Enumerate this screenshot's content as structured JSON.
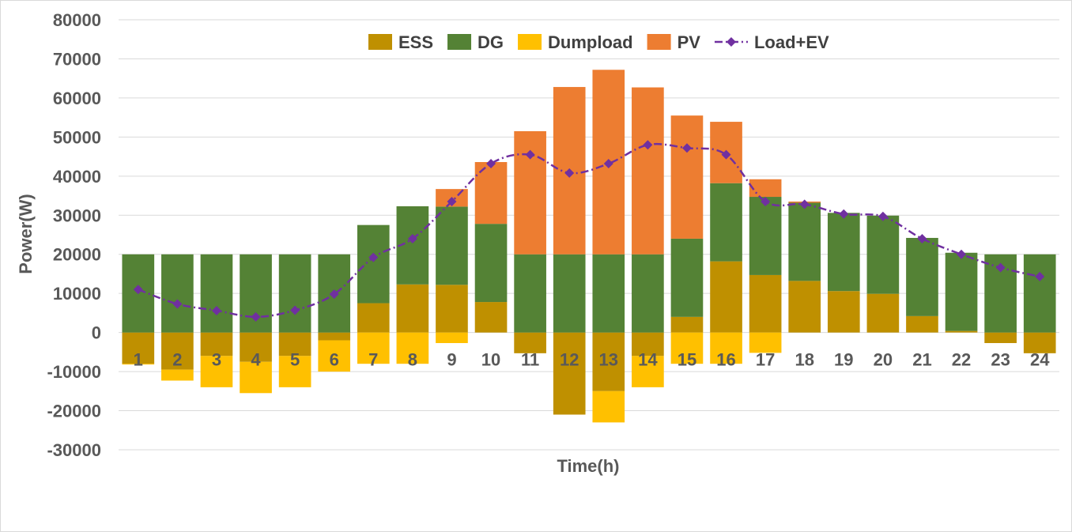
{
  "chart_data": {
    "type": "bar",
    "stacked": true,
    "title": "",
    "xlabel": "Time(h)",
    "ylabel": "Power(W)",
    "ylim": [
      -30000,
      80000
    ],
    "ytick_step": 10000,
    "grid": true,
    "legend_placement": "top-center",
    "categories": [
      "1",
      "2",
      "3",
      "4",
      "5",
      "6",
      "7",
      "8",
      "9",
      "10",
      "11",
      "12",
      "13",
      "14",
      "15",
      "16",
      "17",
      "18",
      "19",
      "20",
      "21",
      "22",
      "23",
      "24"
    ],
    "series": [
      {
        "name": "ESS",
        "kind": "bar",
        "color": "#BF9000",
        "values": [
          -8000,
          -9500,
          -6000,
          -7500,
          -6000,
          -2000,
          7500,
          12300,
          12200,
          7800,
          -5300,
          -21000,
          -15000,
          -6000,
          4000,
          18200,
          14700,
          13200,
          10600,
          9900,
          4200,
          400,
          -2700,
          -5300
        ]
      },
      {
        "name": "DG",
        "kind": "bar",
        "color": "#548235",
        "values": [
          20000,
          20000,
          20000,
          20000,
          20000,
          20000,
          20000,
          20000,
          20000,
          20000,
          20000,
          20000,
          20000,
          20000,
          20000,
          20000,
          20000,
          20000,
          20000,
          20000,
          20000,
          20000,
          20000,
          20000
        ]
      },
      {
        "name": "Dumpload",
        "kind": "bar",
        "color": "#FFC000",
        "values": [
          -200,
          -2800,
          -8000,
          -8000,
          -8000,
          -8000,
          -8000,
          -8000,
          -2700,
          0,
          0,
          0,
          -8000,
          -8000,
          -8000,
          -8000,
          -5200,
          0,
          0,
          0,
          0,
          0,
          0,
          0
        ]
      },
      {
        "name": "PV",
        "kind": "bar",
        "color": "#ED7D31",
        "values": [
          0,
          0,
          0,
          0,
          0,
          0,
          0,
          0,
          4500,
          15800,
          31500,
          42800,
          47200,
          42700,
          31500,
          15700,
          4500,
          300,
          0,
          0,
          0,
          0,
          0,
          0
        ]
      },
      {
        "name": "Load+EV",
        "kind": "line",
        "color": "#7030A0",
        "marker_color": "#7030A0",
        "values": [
          11000,
          7300,
          5600,
          4000,
          5700,
          9800,
          19200,
          24000,
          33500,
          43200,
          45500,
          40800,
          43200,
          48000,
          47200,
          45500,
          33500,
          32800,
          30300,
          29700,
          24000,
          20000,
          16600,
          14300
        ]
      }
    ]
  }
}
